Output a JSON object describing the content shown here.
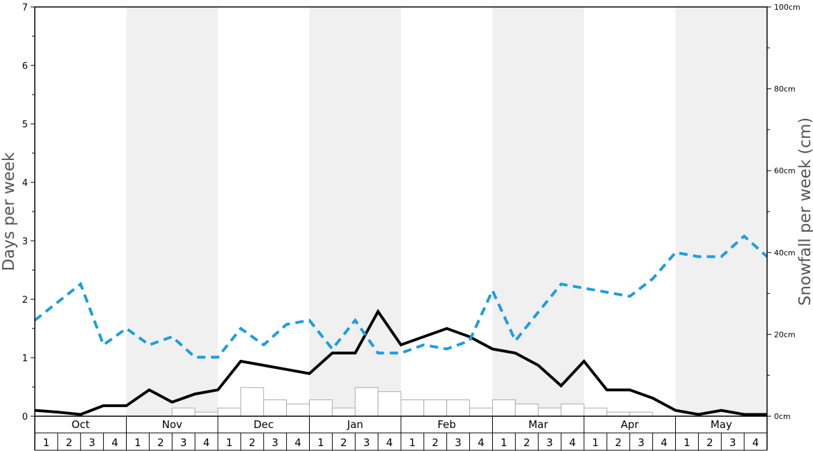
{
  "chart_data": {
    "type": "line",
    "y_left": {
      "label": "Days per week",
      "ylim": [
        0,
        7
      ],
      "ticks": [
        "0",
        "1",
        "2",
        "3",
        "4",
        "5",
        "6",
        "7"
      ]
    },
    "y_right": {
      "label": "Snowfall per week (cm)",
      "ylim": [
        0,
        100
      ],
      "ticks": [
        "0cm",
        "20cm",
        "40cm",
        "60cm",
        "80cm",
        "100cm"
      ]
    },
    "months": [
      "Oct",
      "Nov",
      "Dec",
      "Jan",
      "Feb",
      "Mar",
      "Apr",
      "May"
    ],
    "weeks": [
      "1",
      "2",
      "3",
      "4"
    ],
    "shaded_months": [
      "Nov",
      "Jan",
      "Mar",
      "May"
    ],
    "series": [
      {
        "style": "solid",
        "color": "#000000",
        "axis": "left",
        "values": [
          0.1,
          0.07,
          0.03,
          0.18,
          0.18,
          0.45,
          0.24,
          0.38,
          0.45,
          0.94,
          0.87,
          0.8,
          0.73,
          1.08,
          1.08,
          1.79,
          1.22,
          1.36,
          1.5,
          1.36,
          1.15,
          1.08,
          0.87,
          0.52,
          0.94,
          0.45,
          0.45,
          0.31,
          0.1,
          0.03,
          0.1,
          0.03,
          0.03
        ]
      },
      {
        "style": "dashed",
        "color": "#1a9ee1",
        "axis": "left",
        "values": [
          1.64,
          1.95,
          2.26,
          1.22,
          1.5,
          1.22,
          1.36,
          1.01,
          1.01,
          1.5,
          1.22,
          1.57,
          1.64,
          1.15,
          1.64,
          1.08,
          1.08,
          1.22,
          1.15,
          1.29,
          2.15,
          1.29,
          1.78,
          2.26,
          2.19,
          2.12,
          2.05,
          2.35,
          2.8,
          2.73,
          2.73,
          3.08,
          2.73
        ]
      }
    ],
    "snowfall_bars_cm": [
      0,
      0,
      0,
      0,
      0,
      0,
      2,
      1,
      2,
      7,
      4,
      3,
      4,
      2,
      7,
      6,
      4,
      4,
      4,
      2,
      4,
      3,
      2,
      3,
      2,
      1,
      1,
      0,
      0,
      0,
      0,
      0
    ]
  }
}
